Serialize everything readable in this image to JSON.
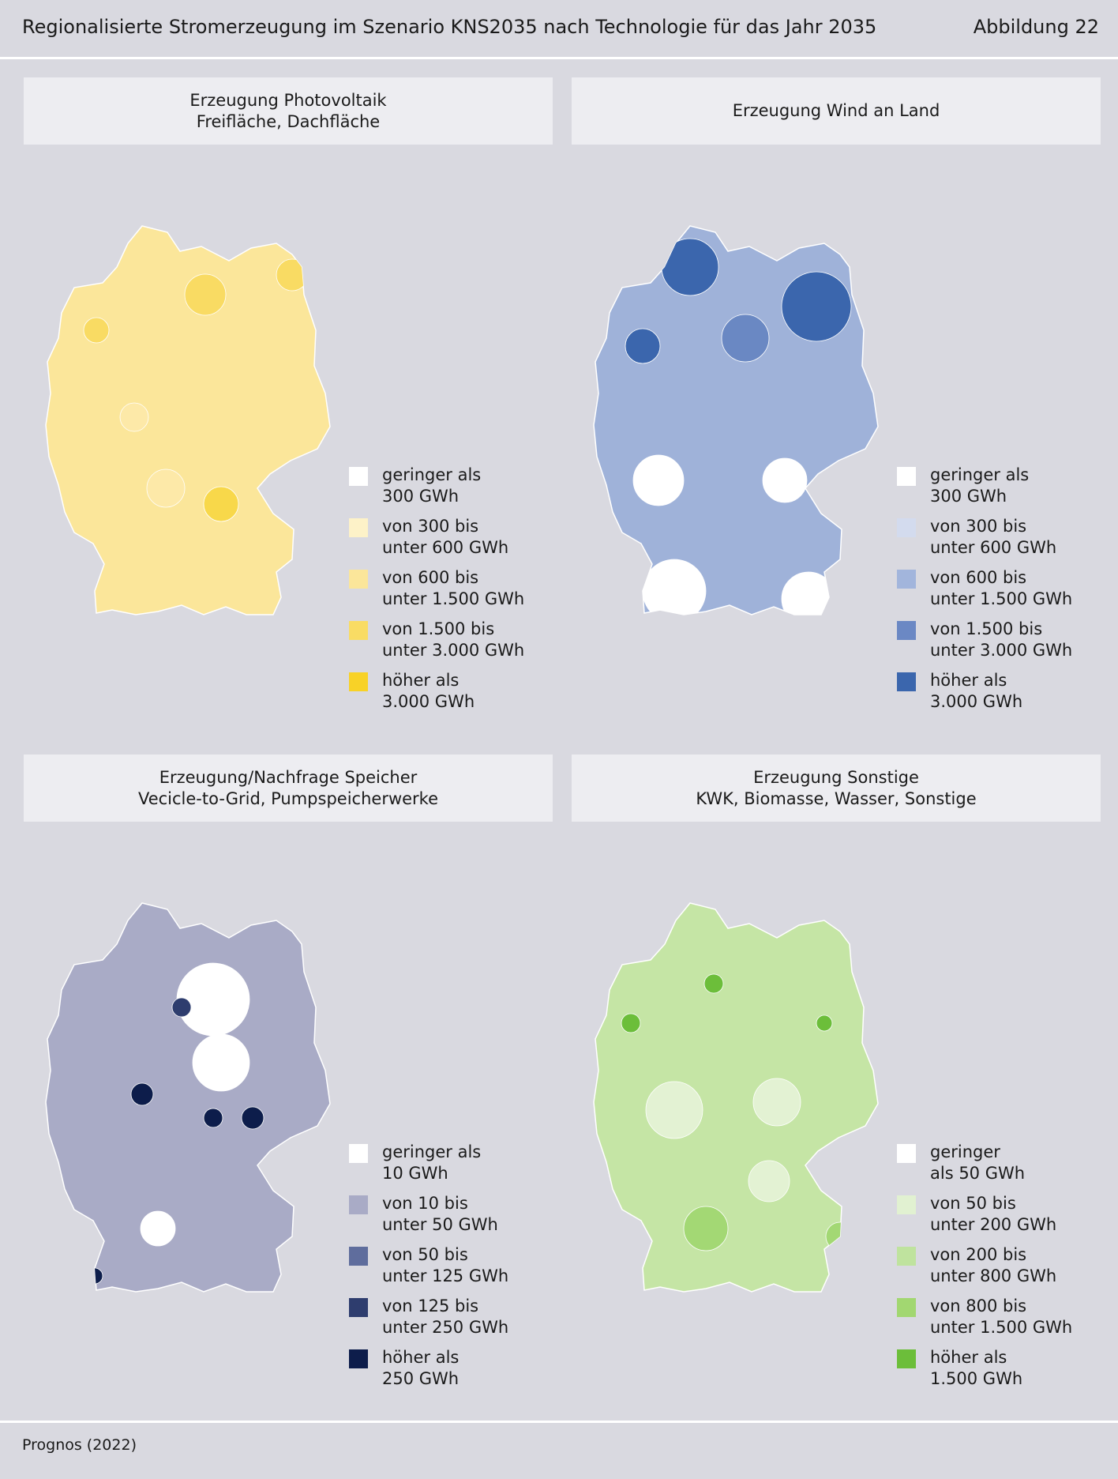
{
  "header": {
    "title": "Regionalisierte Stromerzeugung im Szenario KNS2035 nach Technologie für das Jahr 2035",
    "figure_label": "Abbildung 22"
  },
  "footer": {
    "source": "Prognos (2022)"
  },
  "panels": [
    {
      "title_line1": "Erzeugung Photovoltaik",
      "title_line2": "Freifläche, Dachfläche",
      "map_fill": "#fbe69a",
      "hotspot_colors": [
        "#f9db63",
        "#fde9a8",
        "#f8d84a"
      ],
      "legend": [
        {
          "line1": "geringer als",
          "line2": "300 GWh",
          "color": "#ffffff"
        },
        {
          "line1": "von 300 bis",
          "line2": "unter 600 GWh",
          "color": "#fdf2c8"
        },
        {
          "line1": "von 600 bis",
          "line2": "unter 1.500 GWh",
          "color": "#fbe69a"
        },
        {
          "line1": "von 1.500 bis",
          "line2": "unter 3.000 GWh",
          "color": "#f9dc64"
        },
        {
          "line1": "höher als",
          "line2": "3.000 GWh",
          "color": "#f8d227"
        }
      ]
    },
    {
      "title_line1": "Erzeugung Wind an Land",
      "title_line2": "",
      "map_fill": "#9fb2d9",
      "hotspot_colors": [
        "#3b66ad",
        "#6a88c3",
        "#ffffff"
      ],
      "legend": [
        {
          "line1": "geringer als",
          "line2": "300 GWh",
          "color": "#ffffff"
        },
        {
          "line1": "von 300 bis",
          "line2": "unter 600 GWh",
          "color": "#d3dbee"
        },
        {
          "line1": "von 600 bis",
          "line2": "unter 1.500 GWh",
          "color": "#a2b5dc"
        },
        {
          "line1": "von 1.500 bis",
          "line2": "unter 3.000 GWh",
          "color": "#6b88c4"
        },
        {
          "line1": "höher als",
          "line2": "3.000 GWh",
          "color": "#3b66ad"
        }
      ]
    },
    {
      "title_line1": "Erzeugung/Nachfrage Speicher",
      "title_line2": "Vecicle-to-Grid, Pumpspeicherwerke",
      "map_fill": "#a9abc6",
      "hotspot_colors": [
        "#ffffff",
        "#2e3d6e",
        "#0d1d4b"
      ],
      "legend": [
        {
          "line1": "geringer als",
          "line2": "10 GWh",
          "color": "#ffffff"
        },
        {
          "line1": "von 10 bis",
          "line2": "unter 50 GWh",
          "color": "#a9abc6"
        },
        {
          "line1": "von 50 bis",
          "line2": "unter 125 GWh",
          "color": "#5f6d9d"
        },
        {
          "line1": "von 125 bis",
          "line2": "unter 250 GWh",
          "color": "#2e3d6e"
        },
        {
          "line1": "höher als",
          "line2": "250 GWh",
          "color": "#0d1d4b"
        }
      ]
    },
    {
      "title_line1": "Erzeugung Sonstige",
      "title_line2": "KWK, Biomasse, Wasser, Sonstige",
      "map_fill": "#c5e5a5",
      "hotspot_colors": [
        "#a3d874",
        "#e3f2d3",
        "#6cbe3a"
      ],
      "legend": [
        {
          "line1": "geringer",
          "line2": "als 50 GWh",
          "color": "#ffffff"
        },
        {
          "line1": "von 50 bis",
          "line2": "unter 200 GWh",
          "color": "#e1f1d1"
        },
        {
          "line1": "von 200 bis",
          "line2": "unter 800 GWh",
          "color": "#bfe39e"
        },
        {
          "line1": "von 800 bis",
          "line2": "unter 1.500 GWh",
          "color": "#a2d771"
        },
        {
          "line1": "höher als",
          "line2": "1.500 GWh",
          "color": "#6cbe3a"
        }
      ]
    }
  ]
}
